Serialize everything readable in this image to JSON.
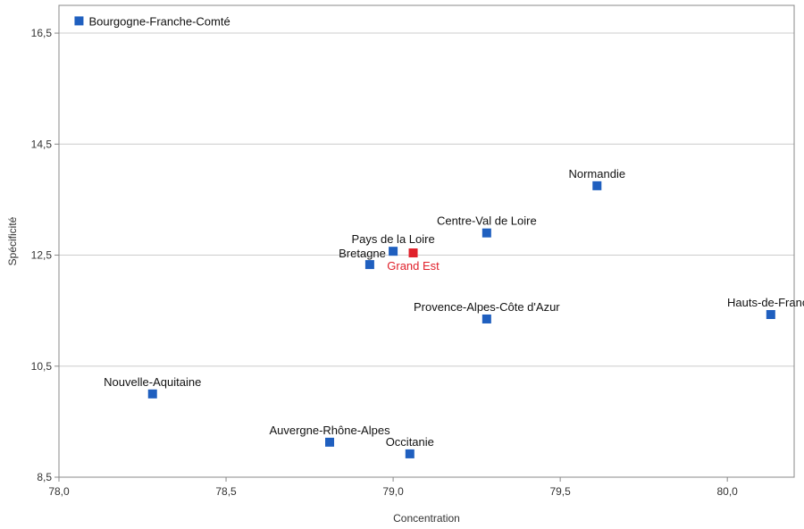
{
  "chart_data": {
    "type": "scatter",
    "xlabel": "Concentration",
    "ylabel": "Spécificité",
    "xlim": [
      78.0,
      80.2
    ],
    "ylim": [
      8.5,
      17.0
    ],
    "x_ticks": [
      "78,0",
      "78,5",
      "79,0",
      "79,5",
      "80,0"
    ],
    "y_ticks": [
      "8,5",
      "10,5",
      "12,5",
      "14,5",
      "16,5"
    ],
    "grid": "horizontal",
    "colors": {
      "default": "#1f5fbf",
      "highlight": "#e0202a",
      "grid": "#cccccc",
      "axis": "#888888"
    },
    "points": [
      {
        "label": "Bourgogne-Franche-Comté",
        "x": 78.06,
        "y": 16.72,
        "highlight": false,
        "label_pos": "right"
      },
      {
        "label": "Normandie",
        "x": 79.61,
        "y": 13.75,
        "highlight": false,
        "label_pos": "above"
      },
      {
        "label": "Centre-Val de Loire",
        "x": 79.28,
        "y": 12.9,
        "highlight": false,
        "label_pos": "above"
      },
      {
        "label": "Pays de la Loire",
        "x": 79.0,
        "y": 12.57,
        "highlight": false,
        "label_pos": "above"
      },
      {
        "label": "Grand Est",
        "x": 79.06,
        "y": 12.54,
        "highlight": true,
        "label_pos": "below"
      },
      {
        "label": "Bretagne",
        "x": 78.93,
        "y": 12.33,
        "highlight": false,
        "label_pos": "left-above"
      },
      {
        "label": "Hauts-de-France",
        "x": 80.13,
        "y": 11.43,
        "highlight": false,
        "label_pos": "above"
      },
      {
        "label": "Provence-Alpes-Côte d'Azur",
        "x": 79.28,
        "y": 11.35,
        "highlight": false,
        "label_pos": "above"
      },
      {
        "label": "Nouvelle-Aquitaine",
        "x": 78.28,
        "y": 10.0,
        "highlight": false,
        "label_pos": "above"
      },
      {
        "label": "Auvergne-Rhône-Alpes",
        "x": 78.81,
        "y": 9.13,
        "highlight": false,
        "label_pos": "above"
      },
      {
        "label": "Occitanie",
        "x": 79.05,
        "y": 8.92,
        "highlight": false,
        "label_pos": "above"
      }
    ]
  }
}
